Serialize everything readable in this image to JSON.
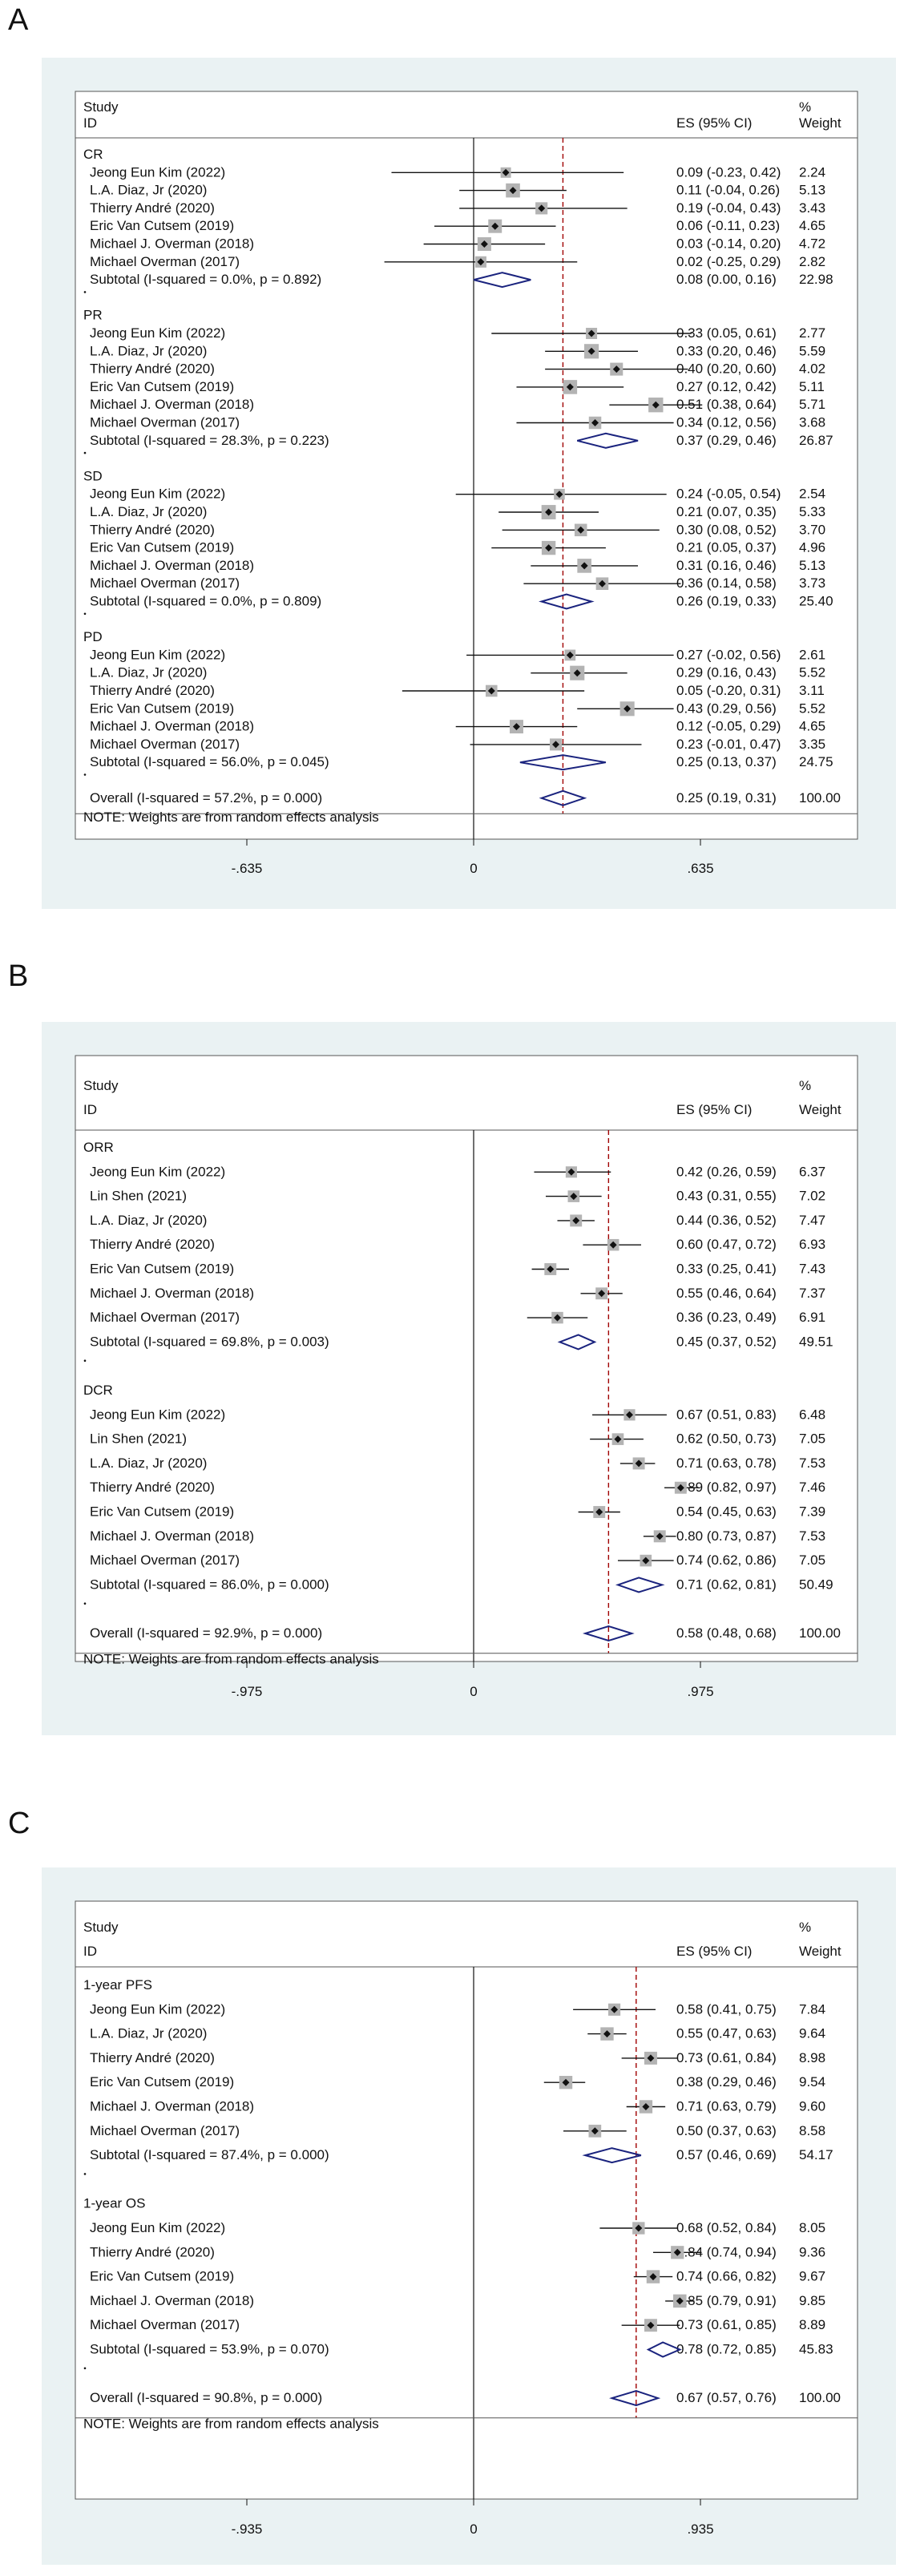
{
  "chart_data": [
    {
      "type": "forest",
      "panel": "A",
      "header": {
        "study": "Study",
        "id": "ID",
        "es": "ES (95% CI)",
        "pct": "%",
        "weight": "Weight"
      },
      "xlim": [
        -0.635,
        0.635
      ],
      "ticks": [
        {
          "v": -0.635,
          "label": "-.635"
        },
        {
          "v": 0,
          "label": "0"
        },
        {
          "v": 0.635,
          "label": ".635"
        }
      ],
      "overall_es": 0.25,
      "note": "NOTE: Weights are from random effects analysis",
      "groups": [
        {
          "label": "CR",
          "studies": [
            {
              "name": "Jeong Eun Kim  (2022)",
              "es": 0.09,
              "lo": -0.23,
              "hi": 0.42,
              "ci": "0.09 (-0.23, 0.42)",
              "weight": "2.24"
            },
            {
              "name": "L.A. Diaz, Jr  (2020)",
              "es": 0.11,
              "lo": -0.04,
              "hi": 0.26,
              "ci": "0.11 (-0.04, 0.26)",
              "weight": "5.13"
            },
            {
              "name": "Thierry André  (2020)",
              "es": 0.19,
              "lo": -0.04,
              "hi": 0.43,
              "ci": "0.19 (-0.04, 0.43)",
              "weight": "3.43"
            },
            {
              "name": "Eric Van Cutsem  (2019)",
              "es": 0.06,
              "lo": -0.11,
              "hi": 0.23,
              "ci": "0.06 (-0.11, 0.23)",
              "weight": "4.65"
            },
            {
              "name": "Michael J. Overman  (2018)",
              "es": 0.03,
              "lo": -0.14,
              "hi": 0.2,
              "ci": "0.03 (-0.14, 0.20)",
              "weight": "4.72"
            },
            {
              "name": "Michael Overman  (2017)",
              "es": 0.02,
              "lo": -0.25,
              "hi": 0.29,
              "ci": "0.02 (-0.25, 0.29)",
              "weight": "2.82"
            }
          ],
          "subtotal": {
            "label": "Subtotal  (I-squared = 0.0%, p = 0.892)",
            "es": 0.08,
            "lo": 0.0,
            "hi": 0.16,
            "ci": "0.08 (0.00, 0.16)",
            "weight": "22.98"
          }
        },
        {
          "label": "PR",
          "studies": [
            {
              "name": "Jeong Eun Kim  (2022)",
              "es": 0.33,
              "lo": 0.05,
              "hi": 0.61,
              "ci": "0.33 (0.05, 0.61)",
              "weight": "2.77"
            },
            {
              "name": "L.A. Diaz, Jr  (2020)",
              "es": 0.33,
              "lo": 0.2,
              "hi": 0.46,
              "ci": "0.33 (0.20, 0.46)",
              "weight": "5.59"
            },
            {
              "name": "Thierry André  (2020)",
              "es": 0.4,
              "lo": 0.2,
              "hi": 0.6,
              "ci": "0.40 (0.20, 0.60)",
              "weight": "4.02"
            },
            {
              "name": "Eric Van Cutsem  (2019)",
              "es": 0.27,
              "lo": 0.12,
              "hi": 0.42,
              "ci": "0.27 (0.12, 0.42)",
              "weight": "5.11"
            },
            {
              "name": "Michael J. Overman  (2018)",
              "es": 0.51,
              "lo": 0.38,
              "hi": 0.64,
              "ci": "0.51 (0.38, 0.64)",
              "weight": "5.71"
            },
            {
              "name": "Michael Overman  (2017)",
              "es": 0.34,
              "lo": 0.12,
              "hi": 0.56,
              "ci": "0.34 (0.12, 0.56)",
              "weight": "3.68"
            }
          ],
          "subtotal": {
            "label": "Subtotal  (I-squared = 28.3%, p = 0.223)",
            "es": 0.37,
            "lo": 0.29,
            "hi": 0.46,
            "ci": "0.37 (0.29, 0.46)",
            "weight": "26.87"
          }
        },
        {
          "label": "SD",
          "studies": [
            {
              "name": "Jeong Eun Kim  (2022)",
              "es": 0.24,
              "lo": -0.05,
              "hi": 0.54,
              "ci": "0.24 (-0.05, 0.54)",
              "weight": "2.54"
            },
            {
              "name": "L.A. Diaz, Jr  (2020)",
              "es": 0.21,
              "lo": 0.07,
              "hi": 0.35,
              "ci": "0.21 (0.07, 0.35)",
              "weight": "5.33"
            },
            {
              "name": "Thierry André  (2020)",
              "es": 0.3,
              "lo": 0.08,
              "hi": 0.52,
              "ci": "0.30 (0.08, 0.52)",
              "weight": "3.70"
            },
            {
              "name": "Eric Van Cutsem  (2019)",
              "es": 0.21,
              "lo": 0.05,
              "hi": 0.37,
              "ci": "0.21 (0.05, 0.37)",
              "weight": "4.96"
            },
            {
              "name": "Michael J. Overman  (2018)",
              "es": 0.31,
              "lo": 0.16,
              "hi": 0.46,
              "ci": "0.31 (0.16, 0.46)",
              "weight": "5.13"
            },
            {
              "name": "Michael Overman  (2017)",
              "es": 0.36,
              "lo": 0.14,
              "hi": 0.58,
              "ci": "0.36 (0.14, 0.58)",
              "weight": "3.73"
            }
          ],
          "subtotal": {
            "label": "Subtotal  (I-squared = 0.0%, p = 0.809)",
            "es": 0.26,
            "lo": 0.19,
            "hi": 0.33,
            "ci": "0.26 (0.19, 0.33)",
            "weight": "25.40"
          }
        },
        {
          "label": "PD",
          "studies": [
            {
              "name": "Jeong Eun Kim  (2022)",
              "es": 0.27,
              "lo": -0.02,
              "hi": 0.56,
              "ci": "0.27 (-0.02, 0.56)",
              "weight": "2.61"
            },
            {
              "name": "L.A. Diaz, Jr  (2020)",
              "es": 0.29,
              "lo": 0.16,
              "hi": 0.43,
              "ci": "0.29 (0.16, 0.43)",
              "weight": "5.52"
            },
            {
              "name": "Thierry André  (2020)",
              "es": 0.05,
              "lo": -0.2,
              "hi": 0.31,
              "ci": "0.05 (-0.20, 0.31)",
              "weight": "3.11"
            },
            {
              "name": "Eric Van Cutsem  (2019)",
              "es": 0.43,
              "lo": 0.29,
              "hi": 0.56,
              "ci": "0.43 (0.29, 0.56)",
              "weight": "5.52"
            },
            {
              "name": "Michael J. Overman  (2018)",
              "es": 0.12,
              "lo": -0.05,
              "hi": 0.29,
              "ci": "0.12 (-0.05, 0.29)",
              "weight": "4.65"
            },
            {
              "name": "Michael Overman  (2017)",
              "es": 0.23,
              "lo": -0.01,
              "hi": 0.47,
              "ci": "0.23 (-0.01, 0.47)",
              "weight": "3.35"
            }
          ],
          "subtotal": {
            "label": "Subtotal  (I-squared = 56.0%, p = 0.045)",
            "es": 0.25,
            "lo": 0.13,
            "hi": 0.37,
            "ci": "0.25 (0.13, 0.37)",
            "weight": "24.75"
          }
        }
      ],
      "overall": {
        "label": "Overall  (I-squared = 57.2%, p = 0.000)",
        "es": 0.25,
        "lo": 0.19,
        "hi": 0.31,
        "ci": "0.25 (0.19, 0.31)",
        "weight": "100.00"
      }
    },
    {
      "type": "forest",
      "panel": "B",
      "header": {
        "study": "Study",
        "id": "ID",
        "es": "ES (95% CI)",
        "pct": "%",
        "weight": "Weight"
      },
      "xlim": [
        -0.975,
        0.975
      ],
      "ticks": [
        {
          "v": -0.975,
          "label": "-.975"
        },
        {
          "v": 0,
          "label": "0"
        },
        {
          "v": 0.975,
          "label": ".975"
        }
      ],
      "overall_es": 0.58,
      "note": "NOTE: Weights are from random effects analysis",
      "groups": [
        {
          "label": "ORR",
          "studies": [
            {
              "name": "Jeong Eun Kim  (2022)",
              "es": 0.42,
              "lo": 0.26,
              "hi": 0.59,
              "ci": "0.42 (0.26, 0.59)",
              "weight": "6.37"
            },
            {
              "name": "Lin Shen  (2021)",
              "es": 0.43,
              "lo": 0.31,
              "hi": 0.55,
              "ci": "0.43 (0.31, 0.55)",
              "weight": "7.02"
            },
            {
              "name": "L.A. Diaz, Jr  (2020)",
              "es": 0.44,
              "lo": 0.36,
              "hi": 0.52,
              "ci": "0.44 (0.36, 0.52)",
              "weight": "7.47"
            },
            {
              "name": "Thierry André  (2020)",
              "es": 0.6,
              "lo": 0.47,
              "hi": 0.72,
              "ci": "0.60 (0.47, 0.72)",
              "weight": "6.93"
            },
            {
              "name": "Eric Van Cutsem  (2019)",
              "es": 0.33,
              "lo": 0.25,
              "hi": 0.41,
              "ci": "0.33 (0.25, 0.41)",
              "weight": "7.43"
            },
            {
              "name": "Michael J. Overman  (2018)",
              "es": 0.55,
              "lo": 0.46,
              "hi": 0.64,
              "ci": "0.55 (0.46, 0.64)",
              "weight": "7.37"
            },
            {
              "name": "Michael Overman  (2017)",
              "es": 0.36,
              "lo": 0.23,
              "hi": 0.49,
              "ci": "0.36 (0.23, 0.49)",
              "weight": "6.91"
            }
          ],
          "subtotal": {
            "label": "Subtotal  (I-squared = 69.8%, p = 0.003)",
            "es": 0.45,
            "lo": 0.37,
            "hi": 0.52,
            "ci": "0.45 (0.37, 0.52)",
            "weight": "49.51"
          }
        },
        {
          "label": "DCR",
          "studies": [
            {
              "name": "Jeong Eun Kim  (2022)",
              "es": 0.67,
              "lo": 0.51,
              "hi": 0.83,
              "ci": "0.67 (0.51, 0.83)",
              "weight": "6.48"
            },
            {
              "name": "Lin Shen  (2021)",
              "es": 0.62,
              "lo": 0.5,
              "hi": 0.73,
              "ci": "0.62 (0.50, 0.73)",
              "weight": "7.05"
            },
            {
              "name": "L.A. Diaz, Jr  (2020)",
              "es": 0.71,
              "lo": 0.63,
              "hi": 0.78,
              "ci": "0.71 (0.63, 0.78)",
              "weight": "7.53"
            },
            {
              "name": "Thierry André  (2020)",
              "es": 0.89,
              "lo": 0.82,
              "hi": 0.97,
              "ci": "0.89 (0.82, 0.97)",
              "weight": "7.46"
            },
            {
              "name": "Eric Van Cutsem  (2019)",
              "es": 0.54,
              "lo": 0.45,
              "hi": 0.63,
              "ci": "0.54 (0.45, 0.63)",
              "weight": "7.39"
            },
            {
              "name": "Michael J. Overman  (2018)",
              "es": 0.8,
              "lo": 0.73,
              "hi": 0.87,
              "ci": "0.80 (0.73, 0.87)",
              "weight": "7.53"
            },
            {
              "name": "Michael Overman  (2017)",
              "es": 0.74,
              "lo": 0.62,
              "hi": 0.86,
              "ci": "0.74 (0.62, 0.86)",
              "weight": "7.05"
            }
          ],
          "subtotal": {
            "label": "Subtotal  (I-squared = 86.0%, p = 0.000)",
            "es": 0.71,
            "lo": 0.62,
            "hi": 0.81,
            "ci": "0.71 (0.62, 0.81)",
            "weight": "50.49"
          }
        }
      ],
      "overall": {
        "label": "Overall  (I-squared = 92.9%, p = 0.000)",
        "es": 0.58,
        "lo": 0.48,
        "hi": 0.68,
        "ci": "0.58 (0.48, 0.68)",
        "weight": "100.00"
      }
    },
    {
      "type": "forest",
      "panel": "C",
      "header": {
        "study": "Study",
        "id": "ID",
        "es": "ES (95% CI)",
        "pct": "%",
        "weight": "Weight"
      },
      "xlim": [
        -0.935,
        0.935
      ],
      "ticks": [
        {
          "v": -0.935,
          "label": "-.935"
        },
        {
          "v": 0,
          "label": "0"
        },
        {
          "v": 0.935,
          "label": ".935"
        }
      ],
      "overall_es": 0.67,
      "note": "NOTE: Weights are from random effects analysis",
      "groups": [
        {
          "label": "1-year PFS",
          "studies": [
            {
              "name": "Jeong Eun Kim  (2022)",
              "es": 0.58,
              "lo": 0.41,
              "hi": 0.75,
              "ci": "0.58 (0.41, 0.75)",
              "weight": "7.84"
            },
            {
              "name": "L.A. Diaz, Jr  (2020)",
              "es": 0.55,
              "lo": 0.47,
              "hi": 0.63,
              "ci": "0.55 (0.47, 0.63)",
              "weight": "9.64"
            },
            {
              "name": "Thierry André  (2020)",
              "es": 0.73,
              "lo": 0.61,
              "hi": 0.84,
              "ci": "0.73 (0.61, 0.84)",
              "weight": "8.98"
            },
            {
              "name": "Eric Van Cutsem  (2019)",
              "es": 0.38,
              "lo": 0.29,
              "hi": 0.46,
              "ci": "0.38 (0.29, 0.46)",
              "weight": "9.54"
            },
            {
              "name": "Michael J. Overman  (2018)",
              "es": 0.71,
              "lo": 0.63,
              "hi": 0.79,
              "ci": "0.71 (0.63, 0.79)",
              "weight": "9.60"
            },
            {
              "name": "Michael Overman  (2017)",
              "es": 0.5,
              "lo": 0.37,
              "hi": 0.63,
              "ci": "0.50 (0.37, 0.63)",
              "weight": "8.58"
            }
          ],
          "subtotal": {
            "label": "Subtotal  (I-squared = 87.4%, p = 0.000)",
            "es": 0.57,
            "lo": 0.46,
            "hi": 0.69,
            "ci": "0.57 (0.46, 0.69)",
            "weight": "54.17"
          }
        },
        {
          "label": "1-year OS",
          "studies": [
            {
              "name": "Jeong Eun Kim  (2022)",
              "es": 0.68,
              "lo": 0.52,
              "hi": 0.84,
              "ci": "0.68 (0.52, 0.84)",
              "weight": "8.05"
            },
            {
              "name": "Thierry André  (2020)",
              "es": 0.84,
              "lo": 0.74,
              "hi": 0.94,
              "ci": "0.84 (0.74, 0.94)",
              "weight": "9.36"
            },
            {
              "name": "Eric Van Cutsem  (2019)",
              "es": 0.74,
              "lo": 0.66,
              "hi": 0.82,
              "ci": "0.74 (0.66, 0.82)",
              "weight": "9.67"
            },
            {
              "name": "Michael J. Overman  (2018)",
              "es": 0.85,
              "lo": 0.79,
              "hi": 0.91,
              "ci": "0.85 (0.79, 0.91)",
              "weight": "9.85"
            },
            {
              "name": "Michael Overman  (2017)",
              "es": 0.73,
              "lo": 0.61,
              "hi": 0.85,
              "ci": "0.73 (0.61, 0.85)",
              "weight": "8.89"
            }
          ],
          "subtotal": {
            "label": "Subtotal  (I-squared = 53.9%, p = 0.070)",
            "es": 0.78,
            "lo": 0.72,
            "hi": 0.85,
            "ci": "0.78 (0.72, 0.85)",
            "weight": "45.83"
          }
        }
      ],
      "overall": {
        "label": "Overall  (I-squared = 90.8%, p = 0.000)",
        "es": 0.67,
        "lo": 0.57,
        "hi": 0.76,
        "ci": "0.67 (0.57, 0.76)",
        "weight": "100.00"
      }
    }
  ],
  "colors": {
    "panel_bg": "#eaf2f3",
    "plot_bg": "#ffffff",
    "diamond": "#1a237e",
    "ref_line": "#a00000",
    "box": "#b3b3b3"
  }
}
